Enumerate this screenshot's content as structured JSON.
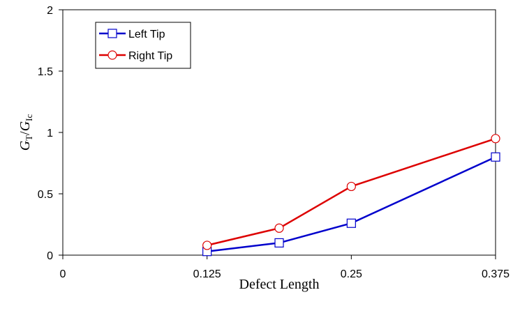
{
  "chart_data": {
    "type": "line",
    "xlabel": "Defect Length",
    "ylabel": {
      "base": "G",
      "sub1": "T",
      "slash": "/",
      "base2": "G",
      "sub2": "Ic"
    },
    "xlim": [
      0,
      0.375
    ],
    "ylim": [
      0,
      2
    ],
    "xticks": [
      "0",
      "0.125",
      "0.25",
      "0.375"
    ],
    "xtick_values": [
      0,
      0.125,
      0.25,
      0.375
    ],
    "yticks": [
      "0",
      "0.5",
      "1",
      "1.5",
      "2"
    ],
    "ytick_values": [
      0,
      0.5,
      1,
      1.5,
      2
    ],
    "grid": false,
    "legend_position": "top-left",
    "series": [
      {
        "name": "Left Tip",
        "color": "#0000cc",
        "marker": "square",
        "x": [
          0.125,
          0.1875,
          0.25,
          0.375
        ],
        "y": [
          0.03,
          0.1,
          0.26,
          0.8
        ]
      },
      {
        "name": "Right Tip",
        "color": "#dd0000",
        "marker": "circle",
        "x": [
          0.125,
          0.1875,
          0.25,
          0.375
        ],
        "y": [
          0.08,
          0.22,
          0.56,
          0.95
        ]
      }
    ]
  }
}
